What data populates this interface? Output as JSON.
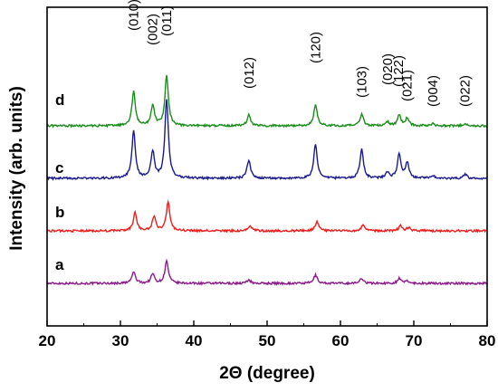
{
  "chart_data": {
    "type": "line",
    "xlabel": "2Θ (degree)",
    "ylabel": "Intensity (arb. units)",
    "xlim": [
      20,
      80
    ],
    "xticks": [
      20,
      30,
      40,
      50,
      60,
      70,
      80
    ],
    "yticks": "none",
    "grid": false,
    "legend": "none; series labeled inline at left of each trace",
    "peaks": [
      {
        "position": 31.8,
        "label": "(010)"
      },
      {
        "position": 34.4,
        "label": "(002)"
      },
      {
        "position": 36.3,
        "label": "(011)"
      },
      {
        "position": 47.5,
        "label": "(012)"
      },
      {
        "position": 56.6,
        "label": "(120)"
      },
      {
        "position": 62.9,
        "label": "(103)"
      },
      {
        "position": 66.4,
        "label": "(020)"
      },
      {
        "position": 67.9,
        "label": "(122)"
      },
      {
        "position": 69.1,
        "label": "(021)"
      },
      {
        "position": 72.6,
        "label": "(004)"
      },
      {
        "position": 77.0,
        "label": "(022)"
      }
    ],
    "series": [
      {
        "name": "a",
        "color": "#8b1a8b",
        "baseline": 0.0,
        "peaks": [
          [
            31.8,
            0.22
          ],
          [
            34.4,
            0.18
          ],
          [
            36.3,
            0.42
          ],
          [
            47.5,
            0.07
          ],
          [
            56.6,
            0.16
          ],
          [
            62.9,
            0.1
          ],
          [
            68.0,
            0.09
          ],
          [
            69.1,
            0.05
          ]
        ]
      },
      {
        "name": "b",
        "color": "#ee1c1c",
        "baseline": 1.0,
        "peaks": [
          [
            32.0,
            0.35
          ],
          [
            34.6,
            0.28
          ],
          [
            36.5,
            0.55
          ],
          [
            47.7,
            0.1
          ],
          [
            56.8,
            0.18
          ],
          [
            63.1,
            0.12
          ],
          [
            68.2,
            0.1
          ],
          [
            69.3,
            0.06
          ]
        ]
      },
      {
        "name": "c",
        "color": "#1a1a8e",
        "baseline": 2.0,
        "peaks": [
          [
            31.8,
            0.9
          ],
          [
            34.4,
            0.5
          ],
          [
            36.3,
            1.5
          ],
          [
            47.5,
            0.35
          ],
          [
            56.6,
            0.65
          ],
          [
            62.9,
            0.55
          ],
          [
            66.4,
            0.1
          ],
          [
            68.0,
            0.45
          ],
          [
            69.1,
            0.3
          ],
          [
            72.6,
            0.05
          ],
          [
            77.0,
            0.08
          ]
        ]
      },
      {
        "name": "d",
        "color": "#1a8c1a",
        "baseline": 3.0,
        "peaks": [
          [
            31.8,
            0.65
          ],
          [
            34.4,
            0.38
          ],
          [
            36.3,
            0.95
          ],
          [
            47.5,
            0.2
          ],
          [
            56.6,
            0.4
          ],
          [
            62.9,
            0.22
          ],
          [
            66.4,
            0.08
          ],
          [
            68.0,
            0.2
          ],
          [
            69.1,
            0.14
          ],
          [
            72.6,
            0.04
          ],
          [
            77.0,
            0.05
          ]
        ]
      }
    ]
  }
}
